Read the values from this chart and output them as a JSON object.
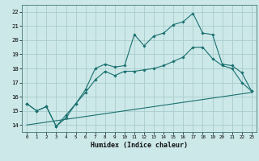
{
  "xlabel": "Humidex (Indice chaleur)",
  "bg_color": "#cce8e8",
  "grid_color": "#aacccc",
  "line_color": "#1a7070",
  "xlim": [
    -0.5,
    23.5
  ],
  "ylim": [
    13.5,
    22.5
  ],
  "xticks": [
    0,
    1,
    2,
    3,
    4,
    5,
    6,
    7,
    8,
    9,
    10,
    11,
    12,
    13,
    14,
    15,
    16,
    17,
    18,
    19,
    20,
    21,
    22,
    23
  ],
  "yticks": [
    14,
    15,
    16,
    17,
    18,
    19,
    20,
    21,
    22
  ],
  "line1_x": [
    0,
    1,
    2,
    3,
    4,
    5,
    6,
    7,
    8,
    9,
    10,
    11,
    12,
    13,
    14,
    15,
    16,
    17,
    18,
    19,
    20,
    21,
    22,
    23
  ],
  "line1_y": [
    15.5,
    15.0,
    15.3,
    13.9,
    14.5,
    15.5,
    16.5,
    18.0,
    18.3,
    18.1,
    18.2,
    20.4,
    19.6,
    20.3,
    20.5,
    21.1,
    21.3,
    21.9,
    20.5,
    20.4,
    18.3,
    18.2,
    17.7,
    16.4
  ],
  "line2_x": [
    0,
    1,
    2,
    3,
    4,
    5,
    6,
    7,
    8,
    9,
    10,
    11,
    12,
    13,
    14,
    15,
    16,
    17,
    18,
    19,
    20,
    21,
    22,
    23
  ],
  "line2_y": [
    15.5,
    15.0,
    15.3,
    13.9,
    14.7,
    15.5,
    16.3,
    17.2,
    17.8,
    17.5,
    17.8,
    17.8,
    17.9,
    18.0,
    18.2,
    18.5,
    18.8,
    19.5,
    19.5,
    18.7,
    18.2,
    18.0,
    17.0,
    16.4
  ],
  "line3_x": [
    0,
    23
  ],
  "line3_y": [
    14.0,
    16.3
  ]
}
